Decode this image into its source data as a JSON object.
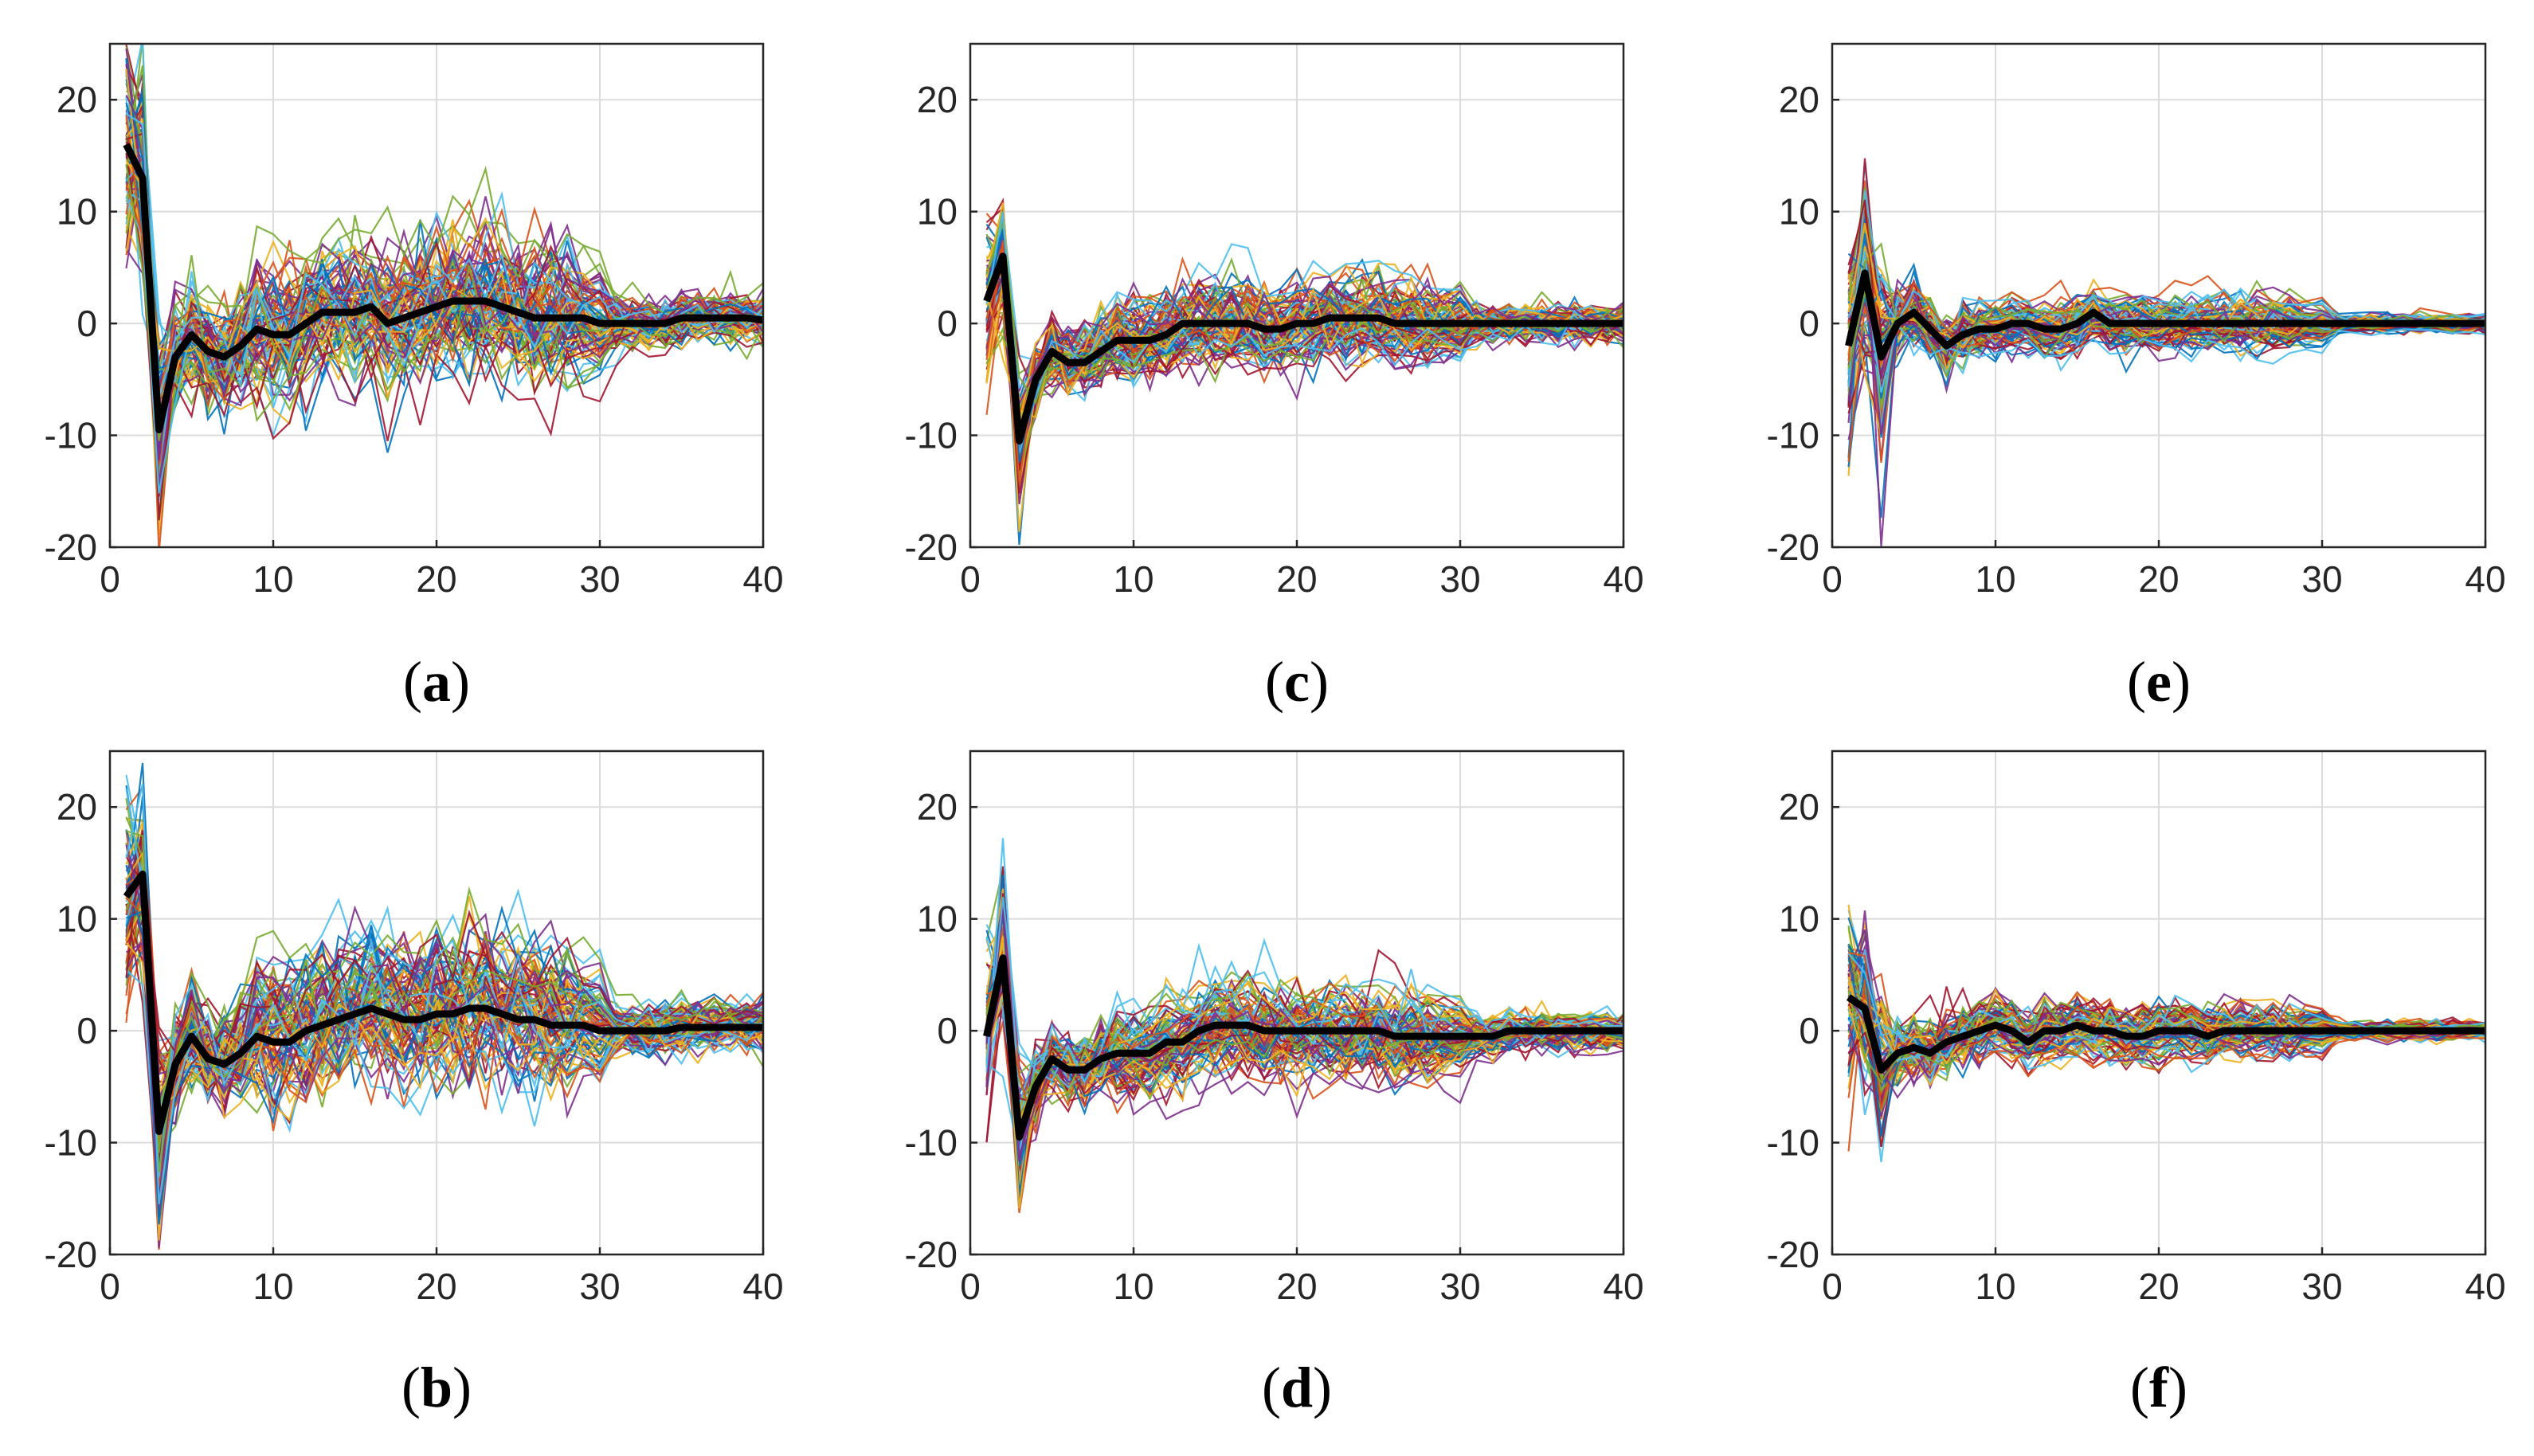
{
  "figure": {
    "type": "multi-panel line plot",
    "description_of_marks": "Each panel: many thin multicolored traces (individual series) with a thick black mean trace"
  },
  "colors": {
    "mean_line": "#000000",
    "grid": "#dcdcdc",
    "axes": "#262626",
    "trace_palette": [
      "#0072BD",
      "#D95319",
      "#EDB120",
      "#7E2F8E",
      "#77AC30",
      "#4DBEEE",
      "#A2142F"
    ]
  },
  "chart_data": [
    {
      "panel": "a",
      "type": "line",
      "caption_letter": "a",
      "xlim": [
        0,
        40
      ],
      "ylim": [
        -20,
        25
      ],
      "xticks": [
        0,
        10,
        20,
        30,
        40
      ],
      "yticks": [
        -20,
        -10,
        0,
        10,
        20
      ],
      "grid": true,
      "mean": {
        "x": [
          1,
          2,
          3,
          4,
          5,
          6,
          7,
          8,
          9,
          10,
          11,
          12,
          13,
          14,
          15,
          16,
          17,
          18,
          19,
          20,
          21,
          22,
          23,
          24,
          25,
          26,
          27,
          28,
          29,
          30,
          31,
          32,
          33,
          34,
          35,
          36,
          37,
          38,
          39,
          40
        ],
        "y": [
          16,
          13,
          -9.5,
          -3,
          -1,
          -2.5,
          -3,
          -2,
          -0.5,
          -1,
          -1,
          0,
          1,
          1,
          1,
          1.5,
          0,
          0.5,
          1,
          1.5,
          2,
          2,
          2,
          1.5,
          1,
          0.5,
          0.5,
          0.5,
          0.5,
          0,
          0,
          0,
          0,
          0,
          0.5,
          0.5,
          0.5,
          0.5,
          0.5,
          0.3
        ]
      },
      "spread": {
        "early": 9,
        "mid": 4,
        "late": 1.5
      },
      "trace_count": 90,
      "seed": 11
    },
    {
      "panel": "b",
      "type": "line",
      "caption_letter": "b",
      "xlim": [
        0,
        40
      ],
      "ylim": [
        -20,
        25
      ],
      "xticks": [
        0,
        10,
        20,
        30,
        40
      ],
      "yticks": [
        -20,
        -10,
        0,
        10,
        20
      ],
      "grid": true,
      "mean": {
        "x": [
          1,
          2,
          3,
          4,
          5,
          6,
          7,
          8,
          9,
          10,
          11,
          12,
          13,
          14,
          15,
          16,
          17,
          18,
          19,
          20,
          21,
          22,
          23,
          24,
          25,
          26,
          27,
          28,
          29,
          30,
          31,
          32,
          33,
          34,
          35,
          36,
          37,
          38,
          39,
          40
        ],
        "y": [
          12,
          14,
          -9,
          -3,
          -0.5,
          -2.5,
          -3,
          -2,
          -0.5,
          -1,
          -1,
          0,
          0.5,
          1,
          1.5,
          2,
          1.5,
          1,
          1,
          1.5,
          1.5,
          2,
          2,
          1.5,
          1,
          1,
          0.5,
          0.5,
          0.5,
          0,
          0,
          0,
          0,
          0,
          0.3,
          0.3,
          0.3,
          0.3,
          0.3,
          0.3
        ]
      },
      "spread": {
        "early": 9,
        "mid": 4,
        "late": 1.5
      },
      "trace_count": 90,
      "seed": 23
    },
    {
      "panel": "c",
      "type": "line",
      "caption_letter": "c",
      "xlim": [
        0,
        40
      ],
      "ylim": [
        -20,
        25
      ],
      "xticks": [
        0,
        10,
        20,
        30,
        40
      ],
      "yticks": [
        -20,
        -10,
        0,
        10,
        20
      ],
      "grid": true,
      "mean": {
        "x": [
          1,
          2,
          3,
          4,
          5,
          6,
          7,
          8,
          9,
          10,
          11,
          12,
          13,
          14,
          15,
          16,
          17,
          18,
          19,
          20,
          21,
          22,
          23,
          24,
          25,
          26,
          27,
          28,
          29,
          30,
          31,
          32,
          33,
          34,
          35,
          36,
          37,
          38,
          39,
          40
        ],
        "y": [
          2,
          6,
          -10.5,
          -5,
          -2.5,
          -3.5,
          -3.5,
          -2.5,
          -1.5,
          -1.5,
          -1.5,
          -1,
          0,
          0,
          0,
          0,
          0,
          -0.5,
          -0.5,
          0,
          0,
          0.5,
          0.5,
          0.5,
          0.5,
          0,
          0,
          0,
          0,
          0,
          0,
          0,
          0,
          0,
          0,
          0,
          0,
          0,
          0,
          0
        ]
      },
      "spread": {
        "early": 6,
        "mid": 2.5,
        "late": 1.2
      },
      "trace_count": 90,
      "seed": 37
    },
    {
      "panel": "d",
      "type": "line",
      "caption_letter": "d",
      "xlim": [
        0,
        40
      ],
      "ylim": [
        -20,
        25
      ],
      "xticks": [
        0,
        10,
        20,
        30,
        40
      ],
      "yticks": [
        -20,
        -10,
        0,
        10,
        20
      ],
      "grid": true,
      "mean": {
        "x": [
          1,
          2,
          3,
          4,
          5,
          6,
          7,
          8,
          9,
          10,
          11,
          12,
          13,
          14,
          15,
          16,
          17,
          18,
          19,
          20,
          21,
          22,
          23,
          24,
          25,
          26,
          27,
          28,
          29,
          30,
          31,
          32,
          33,
          34,
          35,
          36,
          37,
          38,
          39,
          40
        ],
        "y": [
          -0.5,
          6.5,
          -9.5,
          -5,
          -2.5,
          -3.5,
          -3.5,
          -2.5,
          -2,
          -2,
          -2,
          -1,
          -1,
          0,
          0.5,
          0.5,
          0.5,
          0,
          0,
          0,
          0,
          0,
          0,
          0,
          0,
          -0.5,
          -0.5,
          -0.5,
          -0.5,
          -0.5,
          -0.5,
          -0.5,
          0,
          0,
          0,
          0,
          0,
          0,
          0,
          0
        ]
      },
      "spread": {
        "early": 7,
        "mid": 2.5,
        "late": 1.2
      },
      "trace_count": 90,
      "seed": 51
    },
    {
      "panel": "e",
      "type": "line",
      "caption_letter": "e",
      "xlim": [
        0,
        40
      ],
      "ylim": [
        -20,
        25
      ],
      "xticks": [
        0,
        10,
        20,
        30,
        40
      ],
      "yticks": [
        -20,
        -10,
        0,
        10,
        20
      ],
      "grid": true,
      "mean": {
        "x": [
          1,
          2,
          3,
          4,
          5,
          6,
          7,
          8,
          9,
          10,
          11,
          12,
          13,
          14,
          15,
          16,
          17,
          18,
          19,
          20,
          21,
          22,
          23,
          24,
          25,
          26,
          27,
          28,
          29,
          30,
          31,
          32,
          33,
          34,
          35,
          36,
          37,
          38,
          39,
          40
        ],
        "y": [
          -2,
          4.5,
          -3,
          0,
          1,
          -0.5,
          -2,
          -1,
          -0.5,
          -0.5,
          0,
          0,
          -0.5,
          -0.5,
          0,
          1,
          0,
          0,
          0,
          0,
          0,
          0,
          0,
          0,
          0,
          0,
          0,
          0,
          0,
          0,
          0,
          0,
          0,
          0,
          0,
          0,
          0,
          0,
          0,
          0
        ]
      },
      "spread": {
        "early": 8,
        "mid": 1.5,
        "late": 0.5
      },
      "trace_count": 90,
      "seed": 67
    },
    {
      "panel": "f",
      "type": "line",
      "caption_letter": "f",
      "xlim": [
        0,
        40
      ],
      "ylim": [
        -20,
        25
      ],
      "xticks": [
        0,
        10,
        20,
        30,
        40
      ],
      "yticks": [
        -20,
        -10,
        0,
        10,
        20
      ],
      "grid": true,
      "mean": {
        "x": [
          1,
          2,
          3,
          4,
          5,
          6,
          7,
          8,
          9,
          10,
          11,
          12,
          13,
          14,
          15,
          16,
          17,
          18,
          19,
          20,
          21,
          22,
          23,
          24,
          25,
          26,
          27,
          28,
          29,
          30,
          31,
          32,
          33,
          34,
          35,
          36,
          37,
          38,
          39,
          40
        ],
        "y": [
          3,
          2,
          -3.5,
          -2,
          -1.5,
          -2,
          -1,
          -0.5,
          0,
          0.5,
          0,
          -1,
          0,
          0,
          0.5,
          0,
          0,
          -0.5,
          -0.5,
          0,
          0,
          0,
          -0.5,
          0,
          0,
          0,
          0,
          0,
          0,
          0,
          0,
          0,
          0,
          0,
          0,
          0,
          0,
          0,
          0,
          0
        ]
      },
      "spread": {
        "early": 7,
        "mid": 1.5,
        "late": 0.5
      },
      "trace_count": 90,
      "seed": 79
    }
  ]
}
